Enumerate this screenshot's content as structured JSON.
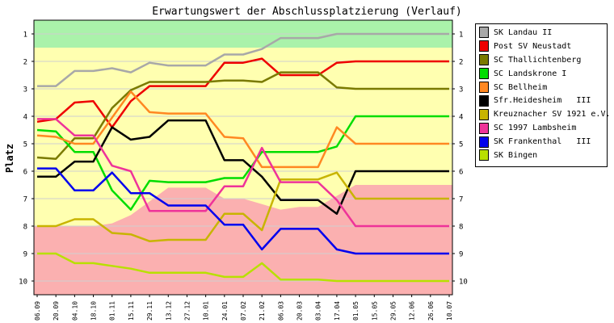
{
  "chart_data": {
    "type": "line",
    "title": "Erwartungswert der Abschlussplatzierung (Verlauf)",
    "ylabel": "Platz",
    "xlabel": "",
    "ylim": [
      1,
      10
    ],
    "y_inverted": true,
    "y_ticks": [
      1,
      2,
      3,
      4,
      5,
      6,
      7,
      8,
      9,
      10
    ],
    "x": [
      "06.09",
      "20.09",
      "04.10",
      "18.10",
      "01.11",
      "15.11",
      "29.11",
      "13.12",
      "27.12",
      "10.01",
      "24.01",
      "07.02",
      "21.02",
      "06.03",
      "20.03",
      "03.04",
      "17.04",
      "01.05",
      "15.05",
      "29.05",
      "12.06",
      "26.06",
      "10.07"
    ],
    "background_bands": {
      "colors": {
        "top": "#aaf2aa",
        "middle": "#ffffb0",
        "bottom": "#fbb0b0"
      },
      "top_edge": [
        1.5,
        1.5,
        1.5,
        1.5,
        1.5,
        1.5,
        1.5,
        1.5,
        1.5,
        1.5,
        1.5,
        1.5,
        1.5,
        1.5,
        1.5,
        1.5,
        1.5,
        1.5,
        1.5,
        1.5,
        1.5,
        1.5,
        1.5
      ],
      "bottom_edge": [
        8.0,
        8.0,
        8.0,
        8.0,
        7.9,
        7.6,
        7.1,
        6.6,
        6.6,
        6.6,
        7.0,
        7.0,
        7.2,
        7.4,
        7.3,
        7.3,
        6.9,
        6.5,
        6.5,
        6.5,
        6.5,
        6.5,
        6.5
      ]
    },
    "series": [
      {
        "name": "SK Landau II",
        "color": "#a8a8a8",
        "values": [
          2.9,
          2.9,
          2.35,
          2.35,
          2.25,
          2.4,
          2.05,
          2.15,
          2.15,
          2.15,
          1.75,
          1.75,
          1.55,
          1.15,
          1.15,
          1.15,
          1.0,
          1.0,
          1.0,
          1.0,
          1.0,
          1.0,
          1.0
        ]
      },
      {
        "name": "Post SV Neustadt",
        "color": "#ee0000",
        "values": [
          4.2,
          4.1,
          3.5,
          3.45,
          4.4,
          3.45,
          2.9,
          2.9,
          2.9,
          2.9,
          2.05,
          2.05,
          1.9,
          2.5,
          2.5,
          2.5,
          2.05,
          2.0,
          2.0,
          2.0,
          2.0,
          2.0,
          2.0
        ]
      },
      {
        "name": "SC Thallichtenberg",
        "color": "#7a7a00",
        "values": [
          5.5,
          5.55,
          4.8,
          4.8,
          3.7,
          3.05,
          2.75,
          2.75,
          2.75,
          2.75,
          2.7,
          2.7,
          2.75,
          2.4,
          2.4,
          2.4,
          2.95,
          3.0,
          3.0,
          3.0,
          3.0,
          3.0,
          3.0
        ]
      },
      {
        "name": "SC Landskrone I",
        "color": "#00dd00",
        "values": [
          4.5,
          4.55,
          5.3,
          5.3,
          6.7,
          7.4,
          6.35,
          6.4,
          6.4,
          6.4,
          6.25,
          6.25,
          5.3,
          5.3,
          5.3,
          5.3,
          5.1,
          4.0,
          4.0,
          4.0,
          4.0,
          4.0,
          4.0
        ]
      },
      {
        "name": "SC Bellheim",
        "color": "#ff8822",
        "values": [
          4.7,
          4.75,
          5.0,
          5.0,
          4.05,
          3.1,
          3.85,
          3.9,
          3.9,
          3.9,
          4.75,
          4.8,
          5.85,
          5.85,
          5.85,
          5.85,
          4.4,
          5.0,
          5.0,
          5.0,
          5.0,
          5.0,
          5.0
        ]
      },
      {
        "name": "Sfr.Heidesheim   III",
        "color": "#000000",
        "values": [
          6.2,
          6.2,
          5.65,
          5.65,
          4.4,
          4.85,
          4.75,
          4.15,
          4.15,
          4.15,
          5.6,
          5.6,
          6.2,
          7.05,
          7.05,
          7.05,
          7.55,
          6.0,
          6.0,
          6.0,
          6.0,
          6.0,
          6.0
        ]
      },
      {
        "name": "Kreuznacher SV 1921 e.V.",
        "color": "#c8b400",
        "values": [
          8.0,
          8.0,
          7.75,
          7.75,
          8.25,
          8.3,
          8.55,
          8.5,
          8.5,
          8.5,
          7.55,
          7.55,
          8.15,
          6.3,
          6.3,
          6.3,
          6.05,
          7.0,
          7.0,
          7.0,
          7.0,
          7.0,
          7.0
        ]
      },
      {
        "name": "SC 1997 Lambsheim",
        "color": "#ee3399",
        "values": [
          4.1,
          4.1,
          4.7,
          4.7,
          5.8,
          6.0,
          7.45,
          7.45,
          7.45,
          7.45,
          6.55,
          6.55,
          5.15,
          6.4,
          6.4,
          6.4,
          7.05,
          8.0,
          8.0,
          8.0,
          8.0,
          8.0,
          8.0
        ]
      },
      {
        "name": "SK Frankenthal   III",
        "color": "#0000ee",
        "values": [
          5.9,
          5.9,
          6.7,
          6.7,
          6.05,
          6.8,
          6.8,
          7.25,
          7.25,
          7.25,
          7.95,
          7.95,
          8.85,
          8.1,
          8.1,
          8.1,
          8.85,
          9.0,
          9.0,
          9.0,
          9.0,
          9.0,
          9.0
        ]
      },
      {
        "name": "SK Bingen",
        "color": "#b8e000",
        "values": [
          9.0,
          9.0,
          9.35,
          9.35,
          9.45,
          9.55,
          9.7,
          9.7,
          9.7,
          9.7,
          9.85,
          9.85,
          9.35,
          9.95,
          9.95,
          9.95,
          10.0,
          10.0,
          10.0,
          10.0,
          10.0,
          10.0,
          10.0
        ]
      }
    ]
  }
}
